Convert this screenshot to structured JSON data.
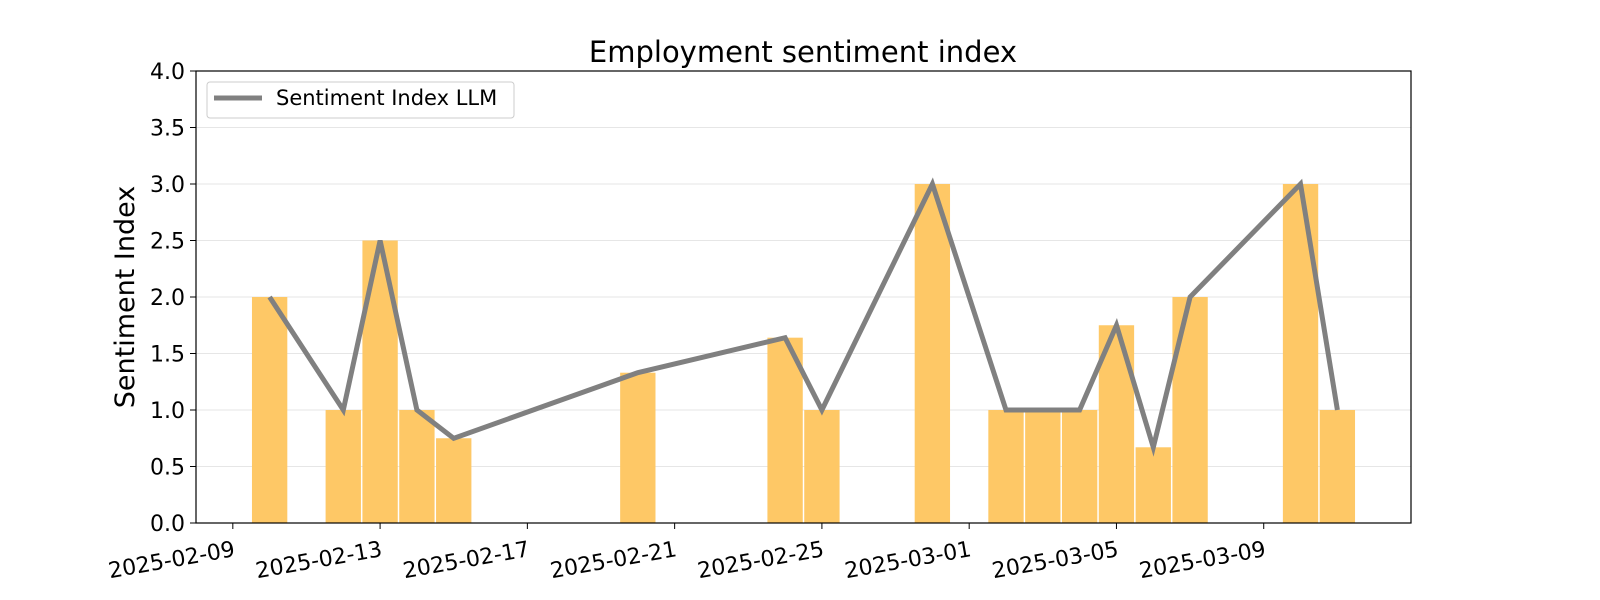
{
  "chart_data": {
    "type": "bar",
    "title": "Employment sentiment index",
    "xlabel": "",
    "ylabel": "Sentiment Index",
    "ylim": [
      0,
      4.0
    ],
    "xlim": [
      "2025-02-08",
      "2025-03-13"
    ],
    "yticks": [
      "0.0",
      "0.5",
      "1.0",
      "1.5",
      "2.0",
      "2.5",
      "3.0",
      "3.5",
      "4.0"
    ],
    "xticks": [
      "2025-02-09",
      "2025-02-13",
      "2025-02-17",
      "2025-02-21",
      "2025-02-25",
      "2025-03-01",
      "2025-03-05",
      "2025-03-09"
    ],
    "grid": "horizontal",
    "legend_position": "top-left",
    "colors": {
      "bar": "#fec866",
      "line": "#808080"
    },
    "series": [
      {
        "name": "Sentiment Index LLM",
        "kind": "line+bar",
        "points": [
          {
            "x": "2025-02-10",
            "y": 2.0
          },
          {
            "x": "2025-02-12",
            "y": 1.0
          },
          {
            "x": "2025-02-13",
            "y": 2.5
          },
          {
            "x": "2025-02-14",
            "y": 1.0
          },
          {
            "x": "2025-02-15",
            "y": 0.75
          },
          {
            "x": "2025-02-20",
            "y": 1.33
          },
          {
            "x": "2025-02-24",
            "y": 1.64
          },
          {
            "x": "2025-02-25",
            "y": 1.0
          },
          {
            "x": "2025-02-28",
            "y": 3.0
          },
          {
            "x": "2025-03-02",
            "y": 1.0
          },
          {
            "x": "2025-03-03",
            "y": 1.0
          },
          {
            "x": "2025-03-04",
            "y": 1.0
          },
          {
            "x": "2025-03-05",
            "y": 1.75
          },
          {
            "x": "2025-03-06",
            "y": 0.67
          },
          {
            "x": "2025-03-07",
            "y": 2.0
          },
          {
            "x": "2025-03-10",
            "y": 3.0
          },
          {
            "x": "2025-03-11",
            "y": 1.0
          }
        ]
      }
    ]
  }
}
